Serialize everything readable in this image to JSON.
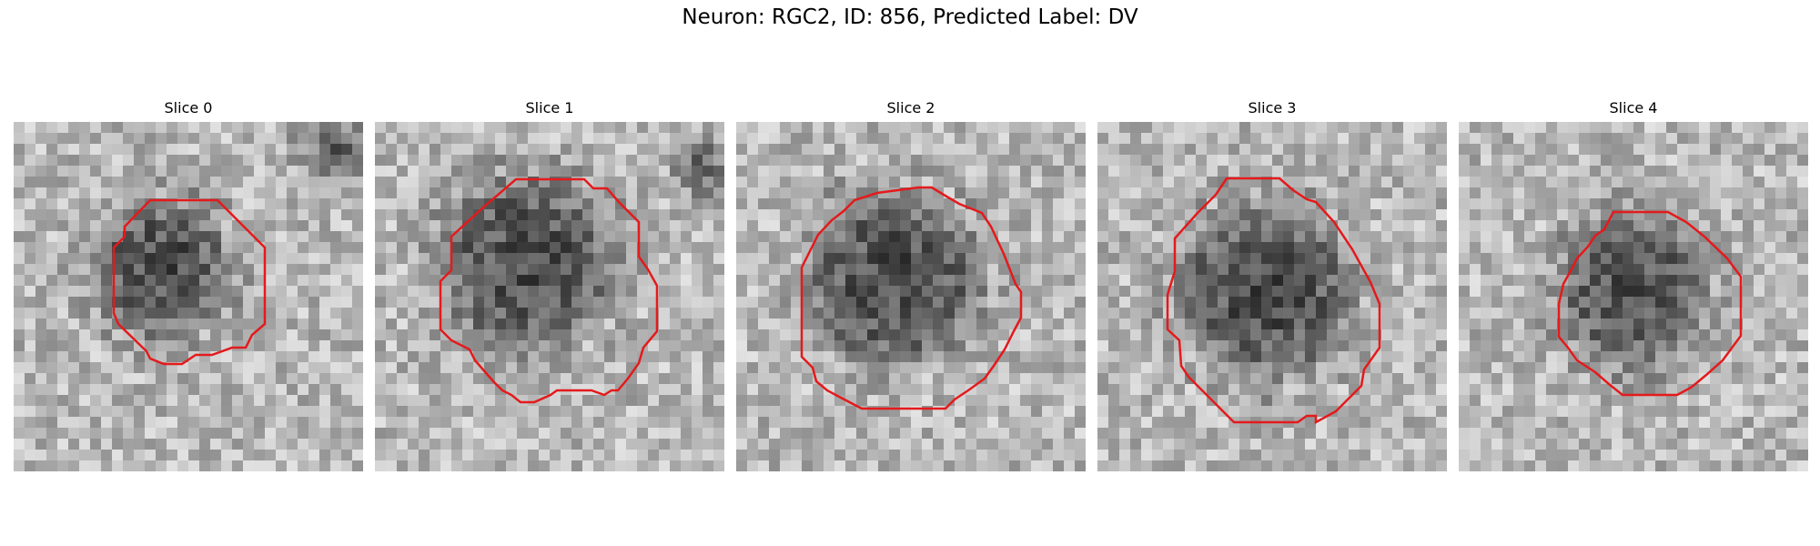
{
  "figure": {
    "title": "Neuron: RGC2, ID: 856, Predicted Label: DV"
  },
  "panels": [
    {
      "label": "Slice 0"
    },
    {
      "label": "Slice 1"
    },
    {
      "label": "Slice 2"
    },
    {
      "label": "Slice 3"
    },
    {
      "label": "Slice 4"
    }
  ],
  "colors": {
    "contour": "#e41a1c",
    "background": "#ffffff"
  }
}
